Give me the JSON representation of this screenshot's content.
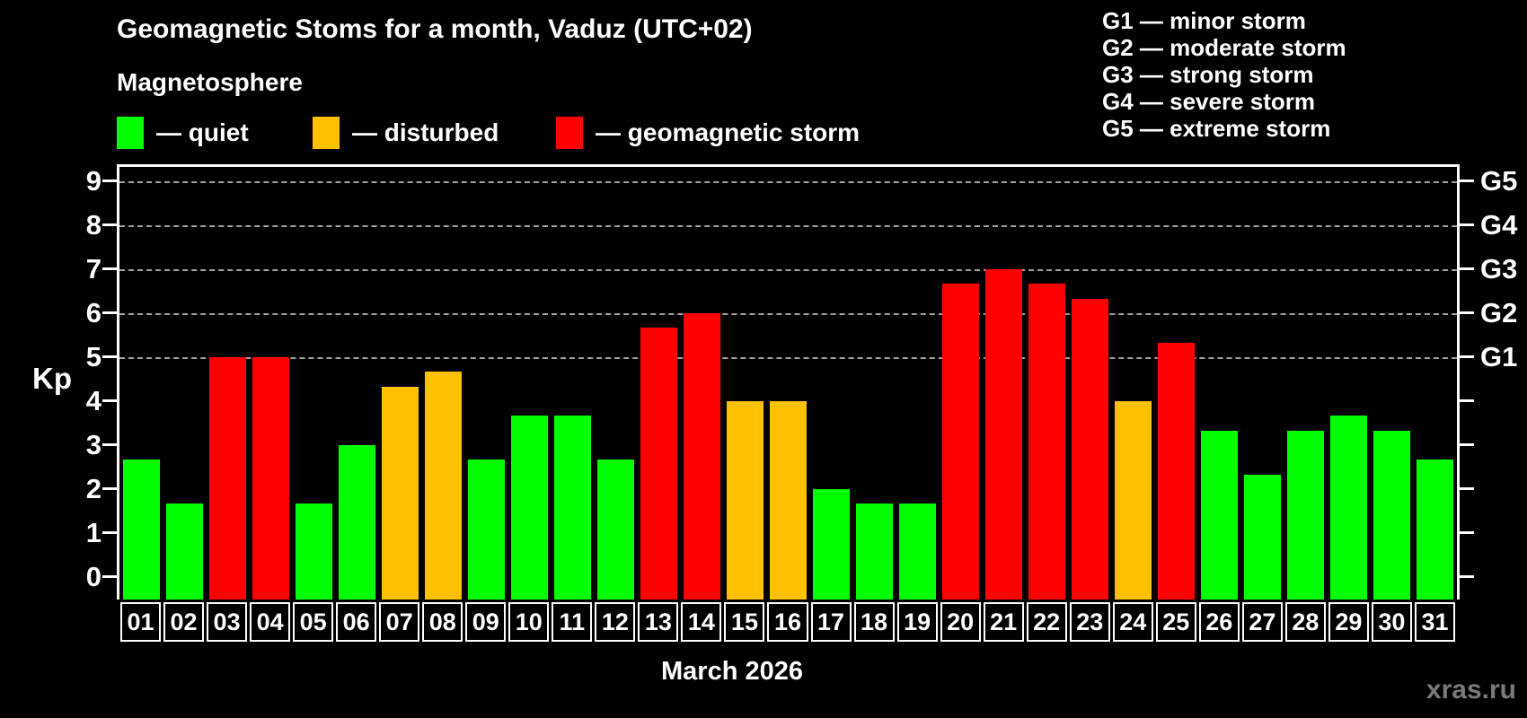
{
  "title": "Geomagnetic Stoms for a month, Vaduz (UTC+02)",
  "subtitle": "Magnetosphere",
  "legend": {
    "items": [
      {
        "key": "quiet",
        "label": "— quiet"
      },
      {
        "key": "disturbed",
        "label": "— disturbed"
      },
      {
        "key": "storm",
        "label": "— geomagnetic storm"
      }
    ]
  },
  "storm_scale": {
    "items": [
      "G1 — minor storm",
      "G2 — moderate storm",
      "G3 — strong storm",
      "G4 — severe storm",
      "G5 — extreme storm"
    ]
  },
  "axis": {
    "kp_label": "Kp",
    "kp_ticks": [
      "0",
      "1",
      "2",
      "3",
      "4",
      "5",
      "6",
      "7",
      "8",
      "9"
    ],
    "g_ticks": [
      {
        "label": "G1",
        "kp": 5
      },
      {
        "label": "G2",
        "kp": 6
      },
      {
        "label": "G3",
        "kp": 7
      },
      {
        "label": "G4",
        "kp": 8
      },
      {
        "label": "G5",
        "kp": 9
      }
    ]
  },
  "colors": {
    "quiet": "#00FF00",
    "disturbed": "#FFC000",
    "storm": "#FF0000",
    "grid": "#A0A0A0",
    "axis": "#FFFFFF",
    "background": "#000000",
    "watermark": "#7A7A7A"
  },
  "x_axis": {
    "title": "March 2026"
  },
  "watermark": "xras.ru",
  "chart_data": {
    "type": "bar",
    "title": "Geomagnetic Stoms for a month, Vaduz (UTC+02)",
    "subtitle": "Magnetosphere",
    "xlabel": "March 2026",
    "ylabel": "Kp",
    "ylim": [
      0,
      9.3
    ],
    "grid": "dashed horizontal lines at Kp 5..9 only",
    "legend_position": "top",
    "x": [
      "01",
      "02",
      "03",
      "04",
      "05",
      "06",
      "07",
      "08",
      "09",
      "10",
      "11",
      "12",
      "13",
      "14",
      "15",
      "16",
      "17",
      "18",
      "19",
      "20",
      "21",
      "22",
      "23",
      "24",
      "25",
      "26",
      "27",
      "28",
      "29",
      "30",
      "31"
    ],
    "values": [
      2.67,
      1.67,
      5.0,
      5.0,
      1.67,
      3.0,
      4.33,
      4.67,
      2.67,
      3.67,
      3.67,
      2.67,
      5.67,
      6.0,
      4.0,
      4.0,
      2.0,
      1.67,
      1.67,
      6.67,
      7.0,
      6.67,
      6.33,
      4.0,
      5.33,
      3.33,
      2.33,
      3.33,
      3.67,
      3.33,
      2.67
    ],
    "statuses": [
      "quiet",
      "quiet",
      "storm",
      "storm",
      "quiet",
      "quiet",
      "disturbed",
      "disturbed",
      "quiet",
      "quiet",
      "quiet",
      "quiet",
      "storm",
      "storm",
      "disturbed",
      "disturbed",
      "quiet",
      "quiet",
      "quiet",
      "storm",
      "storm",
      "storm",
      "storm",
      "disturbed",
      "storm",
      "quiet",
      "quiet",
      "quiet",
      "quiet",
      "quiet",
      "quiet"
    ],
    "right_axis": {
      "G1": 5,
      "G2": 6,
      "G3": 7,
      "G4": 8,
      "G5": 9
    }
  }
}
